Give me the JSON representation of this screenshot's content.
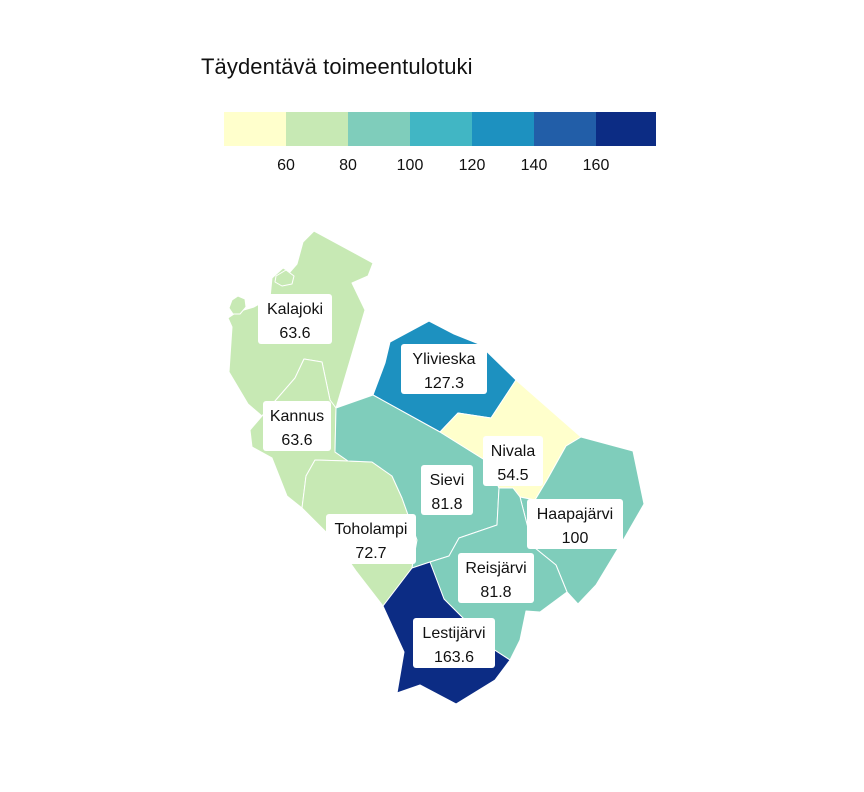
{
  "title": "Täydentävä toimeentulotuki",
  "legend": {
    "colors": [
      "#ffffcc",
      "#c7e9b4",
      "#7fcdbb",
      "#41b6c4",
      "#1d91c0",
      "#225ea8",
      "#0c2c84"
    ],
    "ticks": [
      "60",
      "80",
      "100",
      "120",
      "140",
      "160"
    ]
  },
  "regions": [
    {
      "name": "Kalajoki",
      "value": "63.6",
      "color": "#c7e9b4"
    },
    {
      "name": "Kannus",
      "value": "63.6",
      "color": "#c7e9b4"
    },
    {
      "name": "Toholampi",
      "value": "72.7",
      "color": "#c7e9b4"
    },
    {
      "name": "Ylivieska",
      "value": "127.3",
      "color": "#1d91c0"
    },
    {
      "name": "Nivala",
      "value": "54.5",
      "color": "#ffffcc"
    },
    {
      "name": "Sievi",
      "value": "81.8",
      "color": "#7fcdbb"
    },
    {
      "name": "Haapajärvi",
      "value": "100",
      "color": "#7fcdbb"
    },
    {
      "name": "Reisjärvi",
      "value": "81.8",
      "color": "#7fcdbb"
    },
    {
      "name": "Lestijärvi",
      "value": "163.6",
      "color": "#0c2c84"
    }
  ]
}
